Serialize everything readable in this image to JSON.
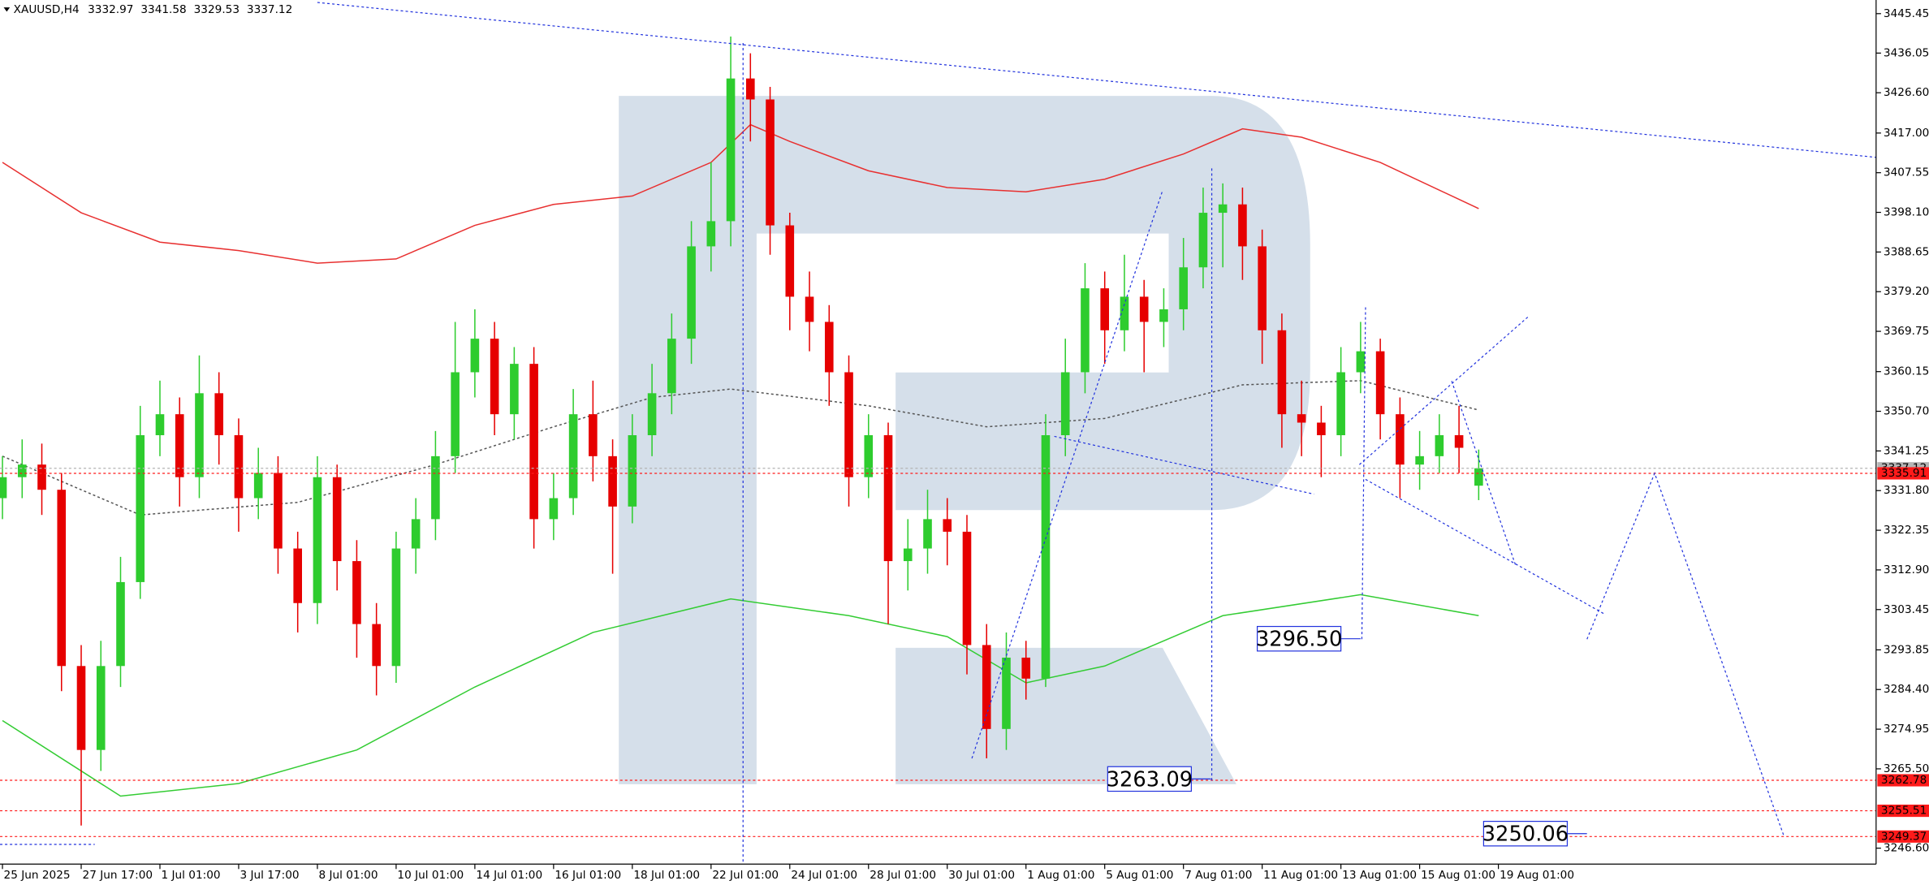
{
  "chart_data": {
    "type": "candlestick",
    "title": "XAUUSD,H4",
    "up_color": "#2ecc2e",
    "down_color": "#e60000",
    "open": [
      3330,
      3335,
      3338,
      3332,
      3290,
      3270,
      3290,
      3310,
      3345,
      3350,
      3335,
      3355,
      3345,
      3330,
      3336,
      3318,
      3305,
      3335,
      3315,
      3300,
      3290,
      3318,
      3325,
      3340,
      3360,
      3368,
      3350,
      3362,
      3325,
      3330,
      3350,
      3340,
      3328,
      3345,
      3355,
      3368,
      3390,
      3396,
      3430,
      3425,
      3395,
      3378,
      3372,
      3360,
      3335,
      3345,
      3315,
      3318,
      3325,
      3322,
      3295,
      3275,
      3292,
      3287,
      3345,
      3360,
      3380,
      3370,
      3378,
      3372,
      3375,
      3385,
      3398,
      3400,
      3390,
      3370,
      3350,
      3348,
      3345,
      3360,
      3365,
      3350,
      3338,
      3340,
      3345,
      3332.97
    ],
    "high": [
      3340,
      3344,
      3343,
      3336,
      3295,
      3296,
      3316,
      3352,
      3358,
      3354,
      3364,
      3360,
      3349,
      3342,
      3340,
      3322,
      3340,
      3338,
      3320,
      3305,
      3322,
      3330,
      3346,
      3372,
      3375,
      3372,
      3366,
      3366,
      3336,
      3356,
      3358,
      3344,
      3350,
      3362,
      3374,
      3396,
      3410,
      3440,
      3436,
      3428,
      3398,
      3384,
      3376,
      3364,
      3350,
      3348,
      3325,
      3332,
      3330,
      3326,
      3300,
      3298,
      3296,
      3350,
      3368,
      3386,
      3384,
      3388,
      3382,
      3380,
      3392,
      3404,
      3405,
      3404,
      3394,
      3374,
      3358,
      3352,
      3366,
      3372,
      3368,
      3354,
      3346,
      3350,
      3352,
      3341.58
    ],
    "low": [
      3325,
      3330,
      3326,
      3284,
      3252,
      3265,
      3285,
      3306,
      3340,
      3328,
      3330,
      3338,
      3322,
      3325,
      3312,
      3298,
      3300,
      3308,
      3292,
      3283,
      3286,
      3312,
      3320,
      3336,
      3354,
      3345,
      3344,
      3318,
      3320,
      3326,
      3334,
      3312,
      3324,
      3340,
      3350,
      3362,
      3384,
      3390,
      3415,
      3388,
      3370,
      3365,
      3352,
      3328,
      3330,
      3300,
      3308,
      3312,
      3314,
      3288,
      3268,
      3270,
      3282,
      3285,
      3340,
      3355,
      3362,
      3365,
      3360,
      3366,
      3370,
      3380,
      3385,
      3382,
      3362,
      3342,
      3340,
      3335,
      3340,
      3355,
      3344,
      3330,
      3332,
      3336,
      3336,
      3329.53
    ],
    "close": [
      3335,
      3338,
      3332,
      3290,
      3270,
      3290,
      3310,
      3345,
      3350,
      3335,
      3355,
      3345,
      3330,
      3336,
      3318,
      3305,
      3335,
      3315,
      3300,
      3290,
      3318,
      3325,
      3340,
      3360,
      3368,
      3350,
      3362,
      3325,
      3330,
      3350,
      3340,
      3328,
      3345,
      3355,
      3368,
      3390,
      3396,
      3430,
      3425,
      3395,
      3378,
      3372,
      3360,
      3335,
      3345,
      3315,
      3318,
      3325,
      3322,
      3295,
      3275,
      3292,
      3287,
      3345,
      3360,
      3380,
      3370,
      3378,
      3372,
      3375,
      3385,
      3398,
      3400,
      3390,
      3370,
      3350,
      3348,
      3345,
      3360,
      3365,
      3350,
      3338,
      3340,
      3345,
      3342,
      3337.12
    ],
    "indicators": [
      {
        "color": "#e83030",
        "dashed": false,
        "x": [
          0,
          4,
          8,
          12,
          16,
          20,
          24,
          28,
          32,
          36,
          38,
          40,
          44,
          48,
          52,
          56,
          60,
          63,
          66,
          70,
          75
        ],
        "values": [
          3410,
          3398,
          3391,
          3389,
          3386,
          3387,
          3395,
          3400,
          3402,
          3410,
          3419,
          3415,
          3408,
          3404,
          3403,
          3406,
          3412,
          3418,
          3416,
          3410,
          3399
        ]
      },
      {
        "color": "#555555",
        "dashed": true,
        "x": [
          0,
          7,
          15,
          22,
          28,
          33,
          37,
          44,
          50,
          56,
          63,
          69,
          75
        ],
        "values": [
          3340,
          3326,
          3329,
          3338,
          3347,
          3354,
          3356,
          3352,
          3347,
          3349,
          3357,
          3358,
          3351
        ]
      },
      {
        "color": "#33cc33",
        "dashed": false,
        "x": [
          0,
          6,
          12,
          18,
          24,
          30,
          37,
          43,
          48,
          52,
          56,
          62,
          69,
          75
        ],
        "values": [
          3277,
          3259,
          3262,
          3270,
          3285,
          3298,
          3306,
          3302,
          3297,
          3286,
          3290,
          3302,
          3307,
          3302
        ]
      }
    ],
    "levels": [
      {
        "value": 3337.12,
        "color": "#b4b4b4"
      },
      {
        "value": 3335.91,
        "color": "#ff1a1a"
      },
      {
        "value": 3262.78,
        "color": "#ff1a1a"
      },
      {
        "value": 3255.51,
        "color": "#ff1a1a"
      },
      {
        "value": 3249.37,
        "color": "#ff1a1a"
      }
    ],
    "annotations": [
      {
        "value": 3296.5,
        "label": "3296.50",
        "x": 69
      },
      {
        "value": 3263.09,
        "label": "3263.09",
        "x": 61.4
      },
      {
        "value": 3250.06,
        "label": "3250.06",
        "x": 80.5
      }
    ],
    "xlim": [
      -0.125,
      95.19
    ],
    "ylim": [
      3242.8,
      3448.7
    ],
    "xticks": [
      {
        "value": 0,
        "label": "25 Jun 2025"
      },
      {
        "value": 4,
        "label": "27 Jun 17:00"
      },
      {
        "value": 8,
        "label": "1 Jul 01:00"
      },
      {
        "value": 12,
        "label": "3 Jul 17:00"
      },
      {
        "value": 16,
        "label": "8 Jul 01:00"
      },
      {
        "value": 20,
        "label": "10 Jul 01:00"
      },
      {
        "value": 24,
        "label": "14 Jul 01:00"
      },
      {
        "value": 28,
        "label": "16 Jul 01:00"
      },
      {
        "value": 32,
        "label": "18 Jul 01:00"
      },
      {
        "value": 36,
        "label": "22 Jul 01:00"
      },
      {
        "value": 40,
        "label": "24 Jul 01:00"
      },
      {
        "value": 44,
        "label": "28 Jul 01:00"
      },
      {
        "value": 48,
        "label": "30 Jul 01:00"
      },
      {
        "value": 52,
        "label": "1 Aug 01:00"
      },
      {
        "value": 56,
        "label": "5 Aug 01:00"
      },
      {
        "value": 60,
        "label": "7 Aug 01:00"
      },
      {
        "value": 64,
        "label": "11 Aug 01:00"
      },
      {
        "value": 68,
        "label": "13 Aug 01:00"
      },
      {
        "value": 72,
        "label": "15 Aug 01:00"
      },
      {
        "value": 76,
        "label": "19 Aug 01:00"
      }
    ],
    "yticks": [
      3445.45,
      3436.05,
      {
        "value": 3426.6,
        "label": "3426.60"
      },
      {
        "value": 3417,
        "label": "3417.00"
      },
      3407.55,
      {
        "value": 3398.1,
        "label": "3398.10"
      },
      3388.65,
      {
        "value": 3379.2,
        "label": "3379.20"
      },
      3369.75,
      3360.15,
      {
        "value": 3350.7,
        "label": "3350.70"
      },
      3341.25,
      {
        "value": 3331.8,
        "label": "3331.80"
      },
      3322.35,
      {
        "value": 3312.9,
        "label": "3312.90"
      },
      3303.45,
      3293.85,
      {
        "value": 3284.4,
        "label": "3284.40"
      },
      3274.95,
      {
        "value": 3265.5,
        "label": "3265.50"
      },
      {
        "value": 3246.6,
        "label": "3246.60"
      }
    ]
  }
}
